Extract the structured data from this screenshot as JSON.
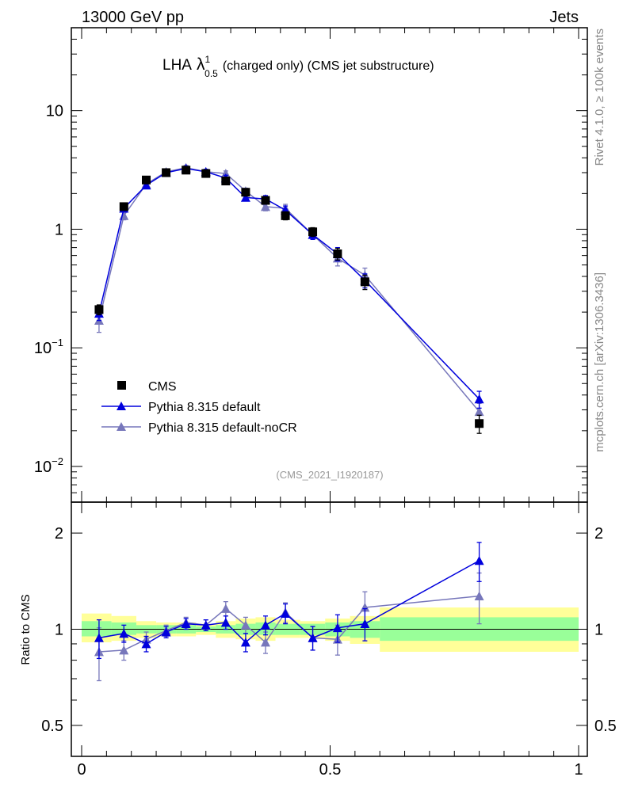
{
  "header": {
    "left_label": "13000 GeV pp",
    "right_label": "Jets"
  },
  "side": {
    "rivet_note": "Rivet 4.1.0, ≥ 100k events",
    "mcplots_note": "mcplots.cern.ch [arXiv:1306.3436]"
  },
  "chart_data": [
    {
      "type": "scatter",
      "panel": "main",
      "title": "LHA",
      "title_lambda": "λ",
      "title_sup": "1",
      "title_sub": "0.5",
      "title_rest": "(charged only) (CMS jet substructure)",
      "analysis_tag": "(CMS_2021_I1920187)",
      "yscale": "log",
      "ylim": [
        0.005,
        50
      ],
      "xlim": [
        0,
        1
      ],
      "yticks": [
        {
          "v": 10,
          "label": "10",
          "exp": ""
        },
        {
          "v": 1,
          "label": "1",
          "exp": ""
        },
        {
          "v": 0.1,
          "label": "10",
          "exp": "−1"
        },
        {
          "v": 0.01,
          "label": "10",
          "exp": "−2"
        }
      ],
      "legend_position": "bottom-left",
      "series": [
        {
          "name": "CMS",
          "marker": "square",
          "color": "#000000",
          "x": [
            0.035,
            0.085,
            0.13,
            0.17,
            0.21,
            0.25,
            0.29,
            0.33,
            0.37,
            0.41,
            0.465,
            0.515,
            0.57,
            0.8
          ],
          "y": [
            0.21,
            1.55,
            2.6,
            3.0,
            3.15,
            2.95,
            2.55,
            2.05,
            1.75,
            1.3,
            0.95,
            0.62,
            0.36,
            0.023
          ],
          "err": [
            0.02,
            0.1,
            0.15,
            0.15,
            0.15,
            0.15,
            0.13,
            0.12,
            0.12,
            0.1,
            0.08,
            0.07,
            0.05,
            0.004
          ]
        },
        {
          "name": "Pythia 8.315 default",
          "marker": "triangle",
          "color": "#0000dd",
          "x": [
            0.035,
            0.085,
            0.13,
            0.17,
            0.21,
            0.25,
            0.29,
            0.33,
            0.37,
            0.41,
            0.465,
            0.515,
            0.57,
            0.8
          ],
          "y": [
            0.195,
            1.5,
            2.35,
            3.0,
            3.25,
            3.05,
            2.7,
            1.85,
            1.8,
            1.45,
            0.9,
            0.62,
            0.37,
            0.037
          ],
          "err": [
            0.025,
            0.1,
            0.12,
            0.15,
            0.15,
            0.15,
            0.15,
            0.12,
            0.12,
            0.12,
            0.08,
            0.08,
            0.05,
            0.006
          ]
        },
        {
          "name": "Pythia 8.315 default-noCR",
          "marker": "triangle",
          "color": "#7777bb",
          "x": [
            0.035,
            0.085,
            0.13,
            0.17,
            0.21,
            0.25,
            0.29,
            0.33,
            0.37,
            0.41,
            0.465,
            0.515,
            0.57,
            0.8
          ],
          "y": [
            0.17,
            1.3,
            2.4,
            3.05,
            3.3,
            3.05,
            2.95,
            2.1,
            1.55,
            1.5,
            0.9,
            0.57,
            0.41,
            0.029
          ],
          "err": [
            0.035,
            0.1,
            0.12,
            0.15,
            0.15,
            0.15,
            0.15,
            0.12,
            0.12,
            0.12,
            0.08,
            0.08,
            0.06,
            0.005
          ]
        }
      ]
    },
    {
      "type": "scatter",
      "panel": "ratio",
      "ylabel": "Ratio to CMS",
      "yscale": "log",
      "ylim": [
        0.4,
        2.5
      ],
      "xlim": [
        0,
        1
      ],
      "yticks": [
        {
          "v": 2,
          "label": "2"
        },
        {
          "v": 1,
          "label": "1"
        },
        {
          "v": 0.5,
          "label": "0.5"
        }
      ],
      "xticks": [
        {
          "v": 0,
          "label": "0"
        },
        {
          "v": 0.5,
          "label": "0.5"
        },
        {
          "v": 1,
          "label": "1"
        }
      ],
      "bands": {
        "colors": {
          "inner": "#99ff99",
          "outer": "#ffff99"
        },
        "bins": [
          {
            "x0": 0.0,
            "x1": 0.06,
            "inner": [
              0.95,
              1.06
            ],
            "outer": [
              0.91,
              1.12
            ]
          },
          {
            "x0": 0.06,
            "x1": 0.11,
            "inner": [
              0.96,
              1.05
            ],
            "outer": [
              0.92,
              1.1
            ]
          },
          {
            "x0": 0.11,
            "x1": 0.15,
            "inner": [
              0.97,
              1.03
            ],
            "outer": [
              0.94,
              1.06
            ]
          },
          {
            "x0": 0.15,
            "x1": 0.19,
            "inner": [
              0.97,
              1.03
            ],
            "outer": [
              0.95,
              1.05
            ]
          },
          {
            "x0": 0.19,
            "x1": 0.23,
            "inner": [
              0.97,
              1.03
            ],
            "outer": [
              0.95,
              1.05
            ]
          },
          {
            "x0": 0.23,
            "x1": 0.27,
            "inner": [
              0.98,
              1.02
            ],
            "outer": [
              0.96,
              1.04
            ]
          },
          {
            "x0": 0.27,
            "x1": 0.31,
            "inner": [
              0.97,
              1.03
            ],
            "outer": [
              0.94,
              1.06
            ]
          },
          {
            "x0": 0.31,
            "x1": 0.35,
            "inner": [
              0.96,
              1.04
            ],
            "outer": [
              0.93,
              1.08
            ]
          },
          {
            "x0": 0.35,
            "x1": 0.39,
            "inner": [
              0.96,
              1.05
            ],
            "outer": [
              0.92,
              1.09
            ]
          },
          {
            "x0": 0.39,
            "x1": 0.44,
            "inner": [
              0.96,
              1.04
            ],
            "outer": [
              0.94,
              1.07
            ]
          },
          {
            "x0": 0.44,
            "x1": 0.49,
            "inner": [
              0.96,
              1.04
            ],
            "outer": [
              0.94,
              1.06
            ]
          },
          {
            "x0": 0.49,
            "x1": 0.54,
            "inner": [
              0.95,
              1.05
            ],
            "outer": [
              0.92,
              1.08
            ]
          },
          {
            "x0": 0.54,
            "x1": 0.6,
            "inner": [
              0.94,
              1.06
            ],
            "outer": [
              0.9,
              1.1
            ]
          },
          {
            "x0": 0.6,
            "x1": 1.0,
            "inner": [
              0.92,
              1.09
            ],
            "outer": [
              0.85,
              1.17
            ]
          }
        ]
      },
      "series": [
        {
          "name": "Pythia 8.315 default",
          "color": "#0000dd",
          "x": [
            0.035,
            0.085,
            0.13,
            0.17,
            0.21,
            0.25,
            0.29,
            0.33,
            0.37,
            0.41,
            0.465,
            0.515,
            0.57,
            0.8
          ],
          "y": [
            0.94,
            0.97,
            0.9,
            0.98,
            1.04,
            1.03,
            1.05,
            0.91,
            1.03,
            1.12,
            0.94,
            1.01,
            1.04,
            1.64
          ],
          "err": [
            0.13,
            0.06,
            0.05,
            0.04,
            0.04,
            0.04,
            0.05,
            0.06,
            0.07,
            0.08,
            0.08,
            0.1,
            0.12,
            0.23
          ]
        },
        {
          "name": "Pythia 8.315 default-noCR",
          "color": "#7777bb",
          "x": [
            0.035,
            0.085,
            0.13,
            0.17,
            0.21,
            0.25,
            0.29,
            0.33,
            0.37,
            0.41,
            0.465,
            0.515,
            0.57,
            0.8
          ],
          "y": [
            0.85,
            0.86,
            0.93,
            0.99,
            1.05,
            1.03,
            1.16,
            1.03,
            0.91,
            1.13,
            0.94,
            0.93,
            1.17,
            1.27
          ],
          "err": [
            0.16,
            0.06,
            0.05,
            0.04,
            0.04,
            0.04,
            0.06,
            0.06,
            0.07,
            0.08,
            0.08,
            0.1,
            0.14,
            0.23
          ]
        }
      ]
    }
  ]
}
